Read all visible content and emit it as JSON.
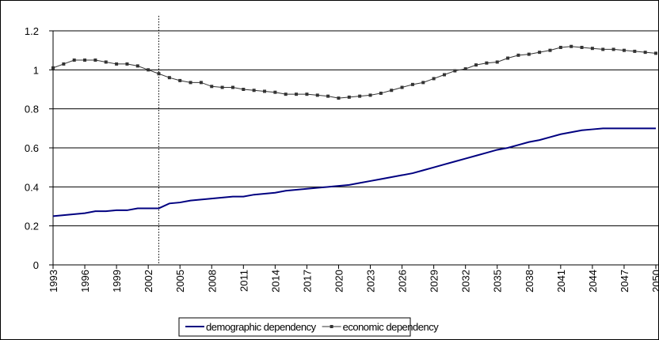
{
  "chart_data": {
    "type": "line",
    "x": [
      1993,
      1994,
      1995,
      1996,
      1997,
      1998,
      1999,
      2000,
      2001,
      2002,
      2003,
      2004,
      2005,
      2006,
      2007,
      2008,
      2009,
      2010,
      2011,
      2012,
      2013,
      2014,
      2015,
      2016,
      2017,
      2018,
      2019,
      2020,
      2021,
      2022,
      2023,
      2024,
      2025,
      2026,
      2027,
      2028,
      2029,
      2030,
      2031,
      2032,
      2033,
      2034,
      2035,
      2036,
      2037,
      2038,
      2039,
      2040,
      2041,
      2042,
      2043,
      2044,
      2045,
      2046,
      2047,
      2048,
      2049,
      2050
    ],
    "xlim": [
      1993,
      2050
    ],
    "xticks": [
      1993,
      1996,
      1999,
      2002,
      2005,
      2008,
      2011,
      2014,
      2017,
      2020,
      2023,
      2026,
      2029,
      2032,
      2035,
      2038,
      2041,
      2044,
      2047,
      2050
    ],
    "ylim": [
      0,
      1.2
    ],
    "yticks": [
      0,
      0.2,
      0.4,
      0.6,
      0.8,
      1,
      1.2
    ],
    "grid": true,
    "vline": 2003,
    "legend": "bottom",
    "series": [
      {
        "name": "demographic dependency",
        "color": "#000080",
        "marker": false,
        "values": [
          0.25,
          0.255,
          0.26,
          0.265,
          0.275,
          0.275,
          0.28,
          0.28,
          0.29,
          0.29,
          0.29,
          0.315,
          0.32,
          0.33,
          0.335,
          0.34,
          0.345,
          0.35,
          0.35,
          0.36,
          0.365,
          0.37,
          0.38,
          0.385,
          0.39,
          0.395,
          0.4,
          0.405,
          0.41,
          0.42,
          0.43,
          0.44,
          0.45,
          0.46,
          0.47,
          0.485,
          0.5,
          0.515,
          0.53,
          0.545,
          0.56,
          0.575,
          0.59,
          0.6,
          0.615,
          0.63,
          0.64,
          0.655,
          0.67,
          0.68,
          0.69,
          0.695,
          0.7,
          0.7,
          0.7,
          0.7,
          0.7,
          0.7
        ]
      },
      {
        "name": "economic dependency",
        "color": "#333333",
        "marker": true,
        "values": [
          1.01,
          1.03,
          1.05,
          1.05,
          1.05,
          1.04,
          1.03,
          1.03,
          1.02,
          1.0,
          0.98,
          0.96,
          0.945,
          0.935,
          0.935,
          0.915,
          0.91,
          0.91,
          0.9,
          0.895,
          0.89,
          0.885,
          0.875,
          0.875,
          0.875,
          0.87,
          0.865,
          0.855,
          0.86,
          0.865,
          0.87,
          0.88,
          0.895,
          0.91,
          0.925,
          0.935,
          0.955,
          0.975,
          0.995,
          1.005,
          1.025,
          1.035,
          1.04,
          1.06,
          1.075,
          1.08,
          1.09,
          1.1,
          1.115,
          1.12,
          1.115,
          1.11,
          1.105,
          1.105,
          1.1,
          1.095,
          1.09,
          1.085
        ]
      }
    ]
  }
}
